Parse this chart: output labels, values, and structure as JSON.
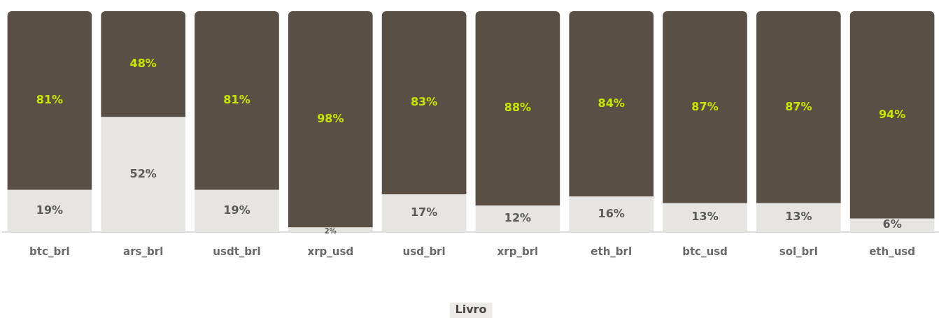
{
  "chart_data": {
    "type": "bar",
    "stacked": true,
    "xlabel": "Livro",
    "categories": [
      "btc_brl",
      "ars_brl",
      "usdt_brl",
      "xrp_usd",
      "usd_brl",
      "xrp_brl",
      "eth_brl",
      "btc_usd",
      "sol_brl",
      "eth_usd"
    ],
    "series": [
      {
        "color": "#e6e5e1",
        "values": [
          19,
          52,
          19,
          2,
          17,
          12,
          16,
          13,
          13,
          6
        ],
        "value_labels": [
          "19%",
          "52%",
          "19%",
          "2%",
          "17%",
          "12%",
          "16%",
          "13%",
          "13%",
          "6%"
        ]
      },
      {
        "color": "#5a4f45",
        "values": [
          81,
          48,
          81,
          98,
          83,
          88,
          84,
          87,
          87,
          94
        ],
        "value_labels": [
          "81%",
          "48%",
          "81%",
          "98%",
          "83%",
          "88%",
          "84%",
          "87%",
          "87%",
          "94%"
        ]
      }
    ],
    "ylim": [
      0,
      100
    ],
    "tick_labels": "x",
    "grid": false,
    "legend": false
  }
}
